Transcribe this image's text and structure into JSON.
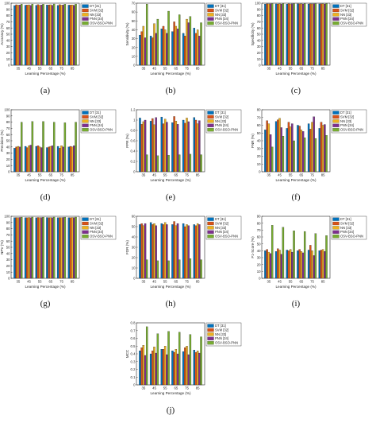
{
  "legend": [
    "DT [31]",
    "SVM [32]",
    "NN [33]",
    "PNN [34]",
    "OSV-BSO-PNN"
  ],
  "colors": [
    "#0072BD",
    "#D95319",
    "#EDB120",
    "#7E2F8E",
    "#77AC30"
  ],
  "chart_data": [
    {
      "type": "bar",
      "panel_label": "(a)",
      "ylabel": "Accuracy (%)",
      "xlabel": "Learning Percentage (%)",
      "categories": [
        "35",
        "45",
        "55",
        "65",
        "75",
        "85"
      ],
      "ylim": [
        0,
        100
      ],
      "yticks": [
        0,
        10,
        20,
        30,
        40,
        50,
        60,
        70,
        80,
        90,
        100
      ],
      "series": [
        {
          "name": "DT [31]",
          "values": [
            96.2,
            96.8,
            96.5,
            97.0,
            96.4,
            96.9
          ]
        },
        {
          "name": "SVM [32]",
          "values": [
            97.5,
            97.0,
            97.8,
            97.2,
            97.6,
            97.1
          ]
        },
        {
          "name": "NN [33]",
          "values": [
            96.8,
            97.4,
            96.6,
            97.5,
            96.9,
            97.3
          ]
        },
        {
          "name": "PNN [34]",
          "values": [
            97.2,
            96.5,
            97.3,
            96.7,
            97.1,
            96.6
          ]
        },
        {
          "name": "OSV-BSO-PNN",
          "values": [
            98.5,
            98.6,
            98.4,
            98.7,
            98.5,
            98.6
          ]
        }
      ]
    },
    {
      "type": "bar",
      "panel_label": "(b)",
      "ylabel": "Sensitivity (%)",
      "xlabel": "Learning Percentage (%)",
      "categories": [
        "35",
        "45",
        "55",
        "65",
        "75",
        "85"
      ],
      "ylim": [
        0,
        70
      ],
      "yticks": [
        0,
        10,
        20,
        30,
        40,
        50,
        60,
        70
      ],
      "series": [
        {
          "name": "DT [31]",
          "values": [
            34,
            33,
            41,
            38,
            36,
            42
          ]
        },
        {
          "name": "SVM [32]",
          "values": [
            38,
            31,
            44,
            49,
            33,
            36
          ]
        },
        {
          "name": "NN [33]",
          "values": [
            44,
            47,
            40,
            44,
            52,
            40
          ]
        },
        {
          "name": "PNN [34]",
          "values": [
            31,
            36,
            36,
            41,
            48,
            33
          ]
        },
        {
          "name": "OSV-BSO-PNN",
          "values": [
            69,
            52,
            61,
            57,
            55,
            48
          ]
        }
      ]
    },
    {
      "type": "bar",
      "panel_label": "(c)",
      "ylabel": "Specificity (%)",
      "xlabel": "Learning Percentage (%)",
      "categories": [
        "35",
        "45",
        "55",
        "65",
        "75",
        "85"
      ],
      "ylim": [
        0,
        100
      ],
      "yticks": [
        0,
        10,
        20,
        30,
        40,
        50,
        60,
        70,
        80,
        90,
        100
      ],
      "series": [
        {
          "name": "DT [31]",
          "values": [
            98.6,
            98.8,
            98.5,
            98.9,
            98.7,
            98.8
          ]
        },
        {
          "name": "SVM [32]",
          "values": [
            99.0,
            98.7,
            99.1,
            98.8,
            99.0,
            98.9
          ]
        },
        {
          "name": "NN [33]",
          "values": [
            98.8,
            99.0,
            98.7,
            99.0,
            98.8,
            99.1
          ]
        },
        {
          "name": "PNN [34]",
          "values": [
            98.9,
            98.6,
            98.9,
            98.7,
            98.9,
            98.7
          ]
        },
        {
          "name": "OSV-BSO-PNN",
          "values": [
            99.3,
            99.4,
            99.3,
            99.4,
            99.3,
            99.4
          ]
        }
      ]
    },
    {
      "type": "bar",
      "panel_label": "(d)",
      "ylabel": "Precision (%)",
      "xlabel": "Learning Percentage (%)",
      "categories": [
        "35",
        "45",
        "55",
        "65",
        "75",
        "85"
      ],
      "ylim": [
        0,
        100
      ],
      "yticks": [
        0,
        10,
        20,
        30,
        40,
        50,
        60,
        70,
        80,
        90,
        100
      ],
      "series": [
        {
          "name": "DT [31]",
          "values": [
            38,
            41,
            41,
            39,
            41,
            40
          ]
        },
        {
          "name": "SVM [32]",
          "values": [
            40,
            39,
            42,
            40,
            38,
            41
          ]
        },
        {
          "name": "NN [33]",
          "values": [
            41,
            42,
            40,
            41,
            42,
            40
          ]
        },
        {
          "name": "PNN [34]",
          "values": [
            40,
            43,
            39,
            42,
            40,
            42
          ]
        },
        {
          "name": "OSV-BSO-PNN",
          "values": [
            80,
            81,
            81,
            80,
            79,
            80
          ]
        }
      ]
    },
    {
      "type": "bar",
      "panel_label": "(e)",
      "ylabel": "FPR (%)",
      "xlabel": "Learning Percentage (%)",
      "categories": [
        "35",
        "45",
        "55",
        "65",
        "75",
        "85"
      ],
      "ylim": [
        0,
        1.2
      ],
      "yticks": [
        0,
        0.2,
        0.4,
        0.6,
        0.8,
        1,
        1.2
      ],
      "series": [
        {
          "name": "DT [31]",
          "values": [
            1.04,
            0.98,
            1.06,
            0.95,
            1.0,
            1.05
          ]
        },
        {
          "name": "SVM [32]",
          "values": [
            0.92,
            1.03,
            0.93,
            1.07,
            0.94,
            1.0
          ]
        },
        {
          "name": "NN [33]",
          "values": [
            0.97,
            0.91,
            1.02,
            0.98,
            1.04,
            0.93
          ]
        },
        {
          "name": "PNN [34]",
          "values": [
            1.0,
            1.05,
            0.96,
            0.92,
            0.97,
            0.99
          ]
        },
        {
          "name": "OSV-BSO-PNN",
          "values": [
            0.33,
            0.31,
            0.32,
            0.33,
            0.34,
            0.33
          ]
        }
      ]
    },
    {
      "type": "bar",
      "panel_label": "(f)",
      "ylabel": "FNR (%)",
      "xlabel": "Learning Percentage (%)",
      "categories": [
        "35",
        "45",
        "55",
        "65",
        "75",
        "85"
      ],
      "ylim": [
        0,
        80
      ],
      "yticks": [
        0,
        10,
        20,
        30,
        40,
        50,
        60,
        70,
        80
      ],
      "series": [
        {
          "name": "DT [31]",
          "values": [
            54,
            65,
            56,
            60,
            62,
            56
          ]
        },
        {
          "name": "SVM [32]",
          "values": [
            66,
            67,
            64,
            59,
            55,
            64
          ]
        },
        {
          "name": "NN [33]",
          "values": [
            62,
            69,
            58,
            54,
            64,
            60
          ]
        },
        {
          "name": "PNN [34]",
          "values": [
            48,
            57,
            62,
            52,
            71,
            61
          ]
        },
        {
          "name": "OSV-BSO-PNN",
          "values": [
            32,
            46,
            40,
            44,
            43,
            47
          ]
        }
      ]
    },
    {
      "type": "bar",
      "panel_label": "(g)",
      "ylabel": "NPV (%)",
      "xlabel": "Learning Percentage (%)",
      "categories": [
        "35",
        "45",
        "55",
        "65",
        "75",
        "85"
      ],
      "ylim": [
        0,
        100
      ],
      "yticks": [
        0,
        10,
        20,
        30,
        40,
        50,
        60,
        70,
        80,
        90,
        100
      ],
      "series": [
        {
          "name": "DT [31]",
          "values": [
            97.8,
            97.9,
            97.6,
            98.0,
            97.8,
            97.9
          ]
        },
        {
          "name": "SVM [32]",
          "values": [
            98.0,
            97.8,
            98.1,
            97.9,
            98.0,
            97.8
          ]
        },
        {
          "name": "NN [33]",
          "values": [
            97.9,
            98.1,
            97.8,
            98.0,
            97.9,
            98.1
          ]
        },
        {
          "name": "PNN [34]",
          "values": [
            98.1,
            97.7,
            98.0,
            97.8,
            98.1,
            97.9
          ]
        },
        {
          "name": "OSV-BSO-PNN",
          "values": [
            98.6,
            98.7,
            98.6,
            98.7,
            98.6,
            98.7
          ]
        }
      ]
    },
    {
      "type": "bar",
      "panel_label": "(h)",
      "ylabel": "FDR (%)",
      "xlabel": "Learning Percentage (%)",
      "categories": [
        "35",
        "45",
        "55",
        "65",
        "75",
        "85"
      ],
      "ylim": [
        0,
        60
      ],
      "yticks": [
        0,
        10,
        20,
        30,
        40,
        50,
        60
      ],
      "series": [
        {
          "name": "DT [31]",
          "values": [
            52,
            54,
            53,
            52,
            53,
            52
          ]
        },
        {
          "name": "SVM [32]",
          "values": [
            53,
            52,
            52,
            55,
            50,
            51
          ]
        },
        {
          "name": "NN [33]",
          "values": [
            51,
            53,
            54,
            51,
            52,
            53
          ]
        },
        {
          "name": "PNN [34]",
          "values": [
            53,
            51,
            52,
            53,
            51,
            52
          ]
        },
        {
          "name": "OSV-BSO-PNN",
          "values": [
            18,
            17,
            17,
            18,
            19,
            18
          ]
        }
      ]
    },
    {
      "type": "bar",
      "panel_label": "(i)",
      "ylabel": "F1-Score (%)",
      "xlabel": "Learning Percentage (%)",
      "categories": [
        "35",
        "45",
        "55",
        "65",
        "75",
        "85"
      ],
      "ylim": [
        0,
        90
      ],
      "yticks": [
        0,
        10,
        20,
        30,
        40,
        50,
        60,
        70,
        80,
        90
      ],
      "series": [
        {
          "name": "DT [31]",
          "values": [
            40,
            39,
            41,
            40,
            41,
            40
          ]
        },
        {
          "name": "SVM [32]",
          "values": [
            42,
            43,
            40,
            42,
            48,
            41
          ]
        },
        {
          "name": "NN [33]",
          "values": [
            38,
            41,
            42,
            39,
            40,
            42
          ]
        },
        {
          "name": "PNN [34]",
          "values": [
            36,
            35,
            38,
            37,
            33,
            39
          ]
        },
        {
          "name": "OSV-BSO-PNN",
          "values": [
            77,
            74,
            69,
            68,
            65,
            62
          ]
        }
      ]
    },
    {
      "type": "bar",
      "panel_label": "(j)",
      "ylabel": "MCC",
      "xlabel": "Learning Percentage (%)",
      "categories": [
        "35",
        "45",
        "55",
        "65",
        "75",
        "85"
      ],
      "ylim": [
        0,
        0.8
      ],
      "yticks": [
        0,
        0.1,
        0.2,
        0.3,
        0.4,
        0.5,
        0.6,
        0.7,
        0.8
      ],
      "series": [
        {
          "name": "DT [31]",
          "values": [
            0.44,
            0.4,
            0.46,
            0.44,
            0.43,
            0.45
          ]
        },
        {
          "name": "SVM [32]",
          "values": [
            0.48,
            0.44,
            0.46,
            0.42,
            0.48,
            0.42
          ]
        },
        {
          "name": "NN [33]",
          "values": [
            0.51,
            0.49,
            0.5,
            0.46,
            0.5,
            0.44
          ]
        },
        {
          "name": "PNN [34]",
          "values": [
            0.38,
            0.41,
            0.39,
            0.4,
            0.39,
            0.41
          ]
        },
        {
          "name": "OSV-BSO-PNN",
          "values": [
            0.75,
            0.66,
            0.69,
            0.68,
            0.65,
            0.62
          ]
        }
      ]
    }
  ]
}
